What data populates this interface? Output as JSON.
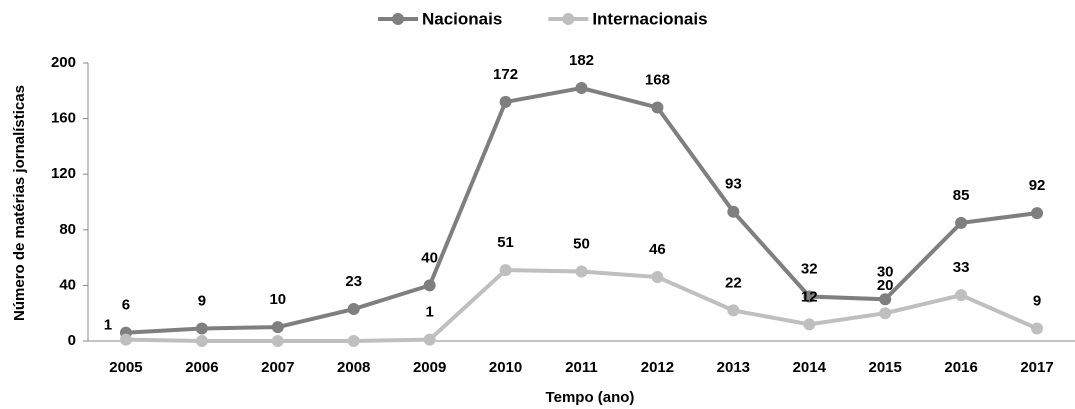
{
  "chart_data": {
    "type": "line",
    "xlabel": "Tempo (ano)",
    "ylabel": "Número de matérias jornalísticas",
    "categories": [
      "2005",
      "2006",
      "2007",
      "2008",
      "2009",
      "2010",
      "2011",
      "2012",
      "2013",
      "2014",
      "2015",
      "2016",
      "2017"
    ],
    "series": [
      {
        "name": "Nacionais",
        "color": "#7f7f7f",
        "values": [
          6,
          9,
          10,
          23,
          40,
          172,
          182,
          168,
          93,
          32,
          30,
          85,
          92
        ]
      },
      {
        "name": "Internacionais",
        "color": "#bfbfbf",
        "values": [
          1,
          0,
          0,
          0,
          1,
          51,
          50,
          46,
          22,
          12,
          20,
          33,
          9
        ],
        "value_labels": [
          1,
          null,
          null,
          null,
          1,
          51,
          50,
          46,
          22,
          12,
          20,
          33,
          9
        ]
      }
    ],
    "ylim": [
      0,
      200
    ],
    "yticks": [
      0,
      40,
      80,
      120,
      160,
      200
    ],
    "legend": "top"
  }
}
